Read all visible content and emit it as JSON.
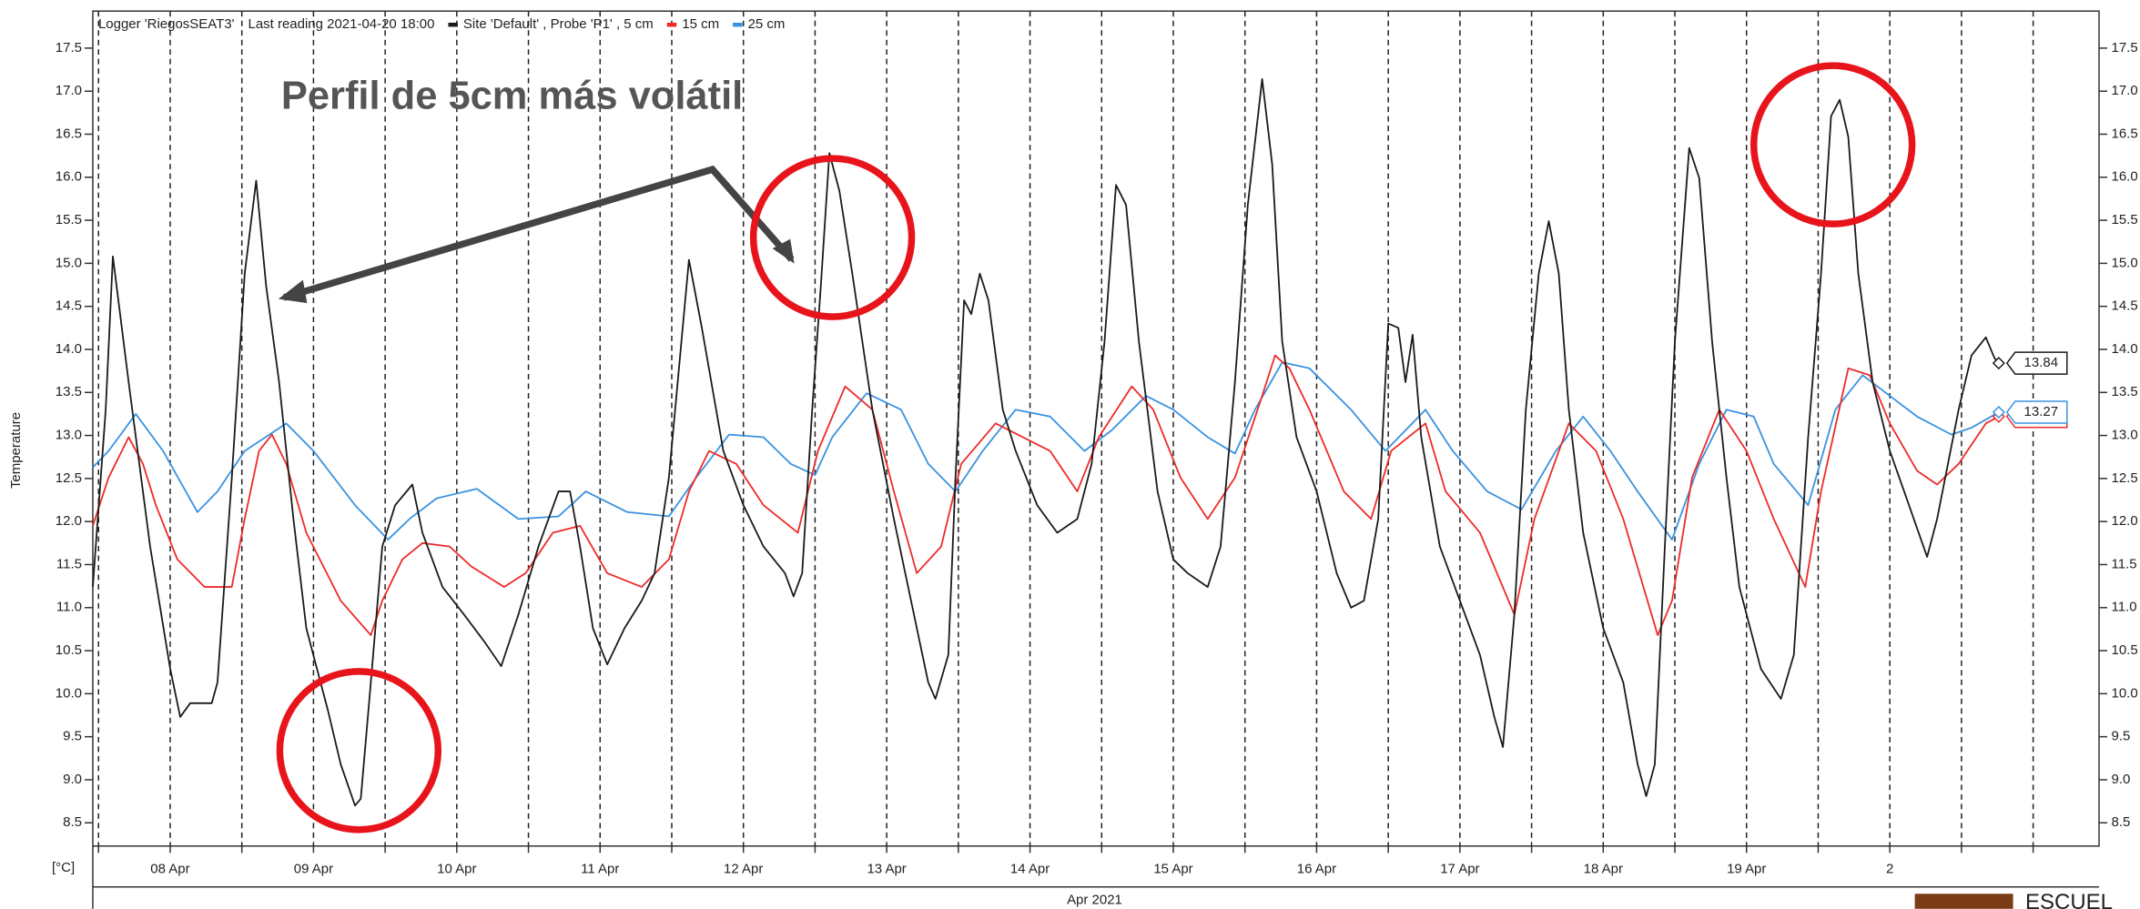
{
  "chart_data": {
    "type": "line",
    "title": "Logger 'RiegosSEAT3'",
    "subtitle": "Last reading 2021-04-20 18:00",
    "ylabel": "Temperature",
    "yunit": "[°C]",
    "xlabel": "Apr 2021",
    "annotation": "Perfil de 5cm más volátil",
    "logo": "ESCUEL",
    "xlim": [
      7.46,
      21.46
    ],
    "ylim": [
      8.23,
      17.93
    ],
    "grid": "x",
    "xticks": [
      {
        "value": 8,
        "label": "08 Apr"
      },
      {
        "value": 9,
        "label": "09 Apr"
      },
      {
        "value": 10,
        "label": "10 Apr"
      },
      {
        "value": 11,
        "label": "11 Apr"
      },
      {
        "value": 12,
        "label": "12 Apr"
      },
      {
        "value": 13,
        "label": "13 Apr"
      },
      {
        "value": 14,
        "label": "14 Apr"
      },
      {
        "value": 15,
        "label": "15 Apr"
      },
      {
        "value": 16,
        "label": "16 Apr"
      },
      {
        "value": 17,
        "label": "17 Apr"
      },
      {
        "value": 18,
        "label": "18 Apr"
      },
      {
        "value": 19,
        "label": "19 Apr"
      },
      {
        "value": 20,
        "label": "2"
      }
    ],
    "xminor": [
      7.5,
      8.5,
      9.5,
      10.5,
      11.5,
      12.5,
      13.5,
      14.5,
      15.5,
      16.5,
      17.5,
      18.5,
      19.5,
      20.5,
      21
    ],
    "yticks": [
      8.5,
      {
        "value": 9,
        "label": "9.0"
      },
      9.5,
      {
        "value": 10,
        "label": "10.0"
      },
      10.5,
      {
        "value": 11,
        "label": "11.0"
      },
      11.5,
      {
        "value": 12,
        "label": "12.0"
      },
      12.5,
      {
        "value": 13,
        "label": "13.0"
      },
      13.5,
      {
        "value": 14,
        "label": "14.0"
      },
      14.5,
      {
        "value": 15,
        "label": "15.0"
      },
      15.5,
      {
        "value": 16,
        "label": "16.0"
      },
      16.5,
      {
        "value": 17,
        "label": "17.0"
      },
      17.5
    ],
    "series": [
      {
        "name": "Site 'Default' , Probe 'P1' , 5 cm",
        "color": "#1a1a1a",
        "end_value": 13.84,
        "x": [
          7.46,
          7.55,
          7.6,
          7.71,
          7.86,
          8.0,
          8.07,
          8.14,
          8.29,
          8.33,
          8.43,
          8.52,
          8.6,
          8.67,
          8.76,
          8.86,
          8.95,
          9.1,
          9.19,
          9.29,
          9.33,
          9.4,
          9.48,
          9.57,
          9.69,
          9.76,
          9.9,
          10.05,
          10.19,
          10.31,
          10.43,
          10.57,
          10.71,
          10.79,
          10.86,
          10.95,
          11.05,
          11.17,
          11.29,
          11.38,
          11.48,
          11.62,
          11.71,
          11.86,
          12.0,
          12.14,
          12.29,
          12.35,
          12.41,
          12.48,
          12.54,
          12.6,
          12.67,
          12.76,
          12.9,
          13.05,
          13.19,
          13.29,
          13.34,
          13.43,
          13.48,
          13.54,
          13.59,
          13.65,
          13.71,
          13.81,
          13.9,
          14.05,
          14.19,
          14.33,
          14.43,
          14.52,
          14.6,
          14.67,
          14.76,
          14.89,
          15.0,
          15.1,
          15.24,
          15.33,
          15.43,
          15.52,
          15.62,
          15.69,
          15.76,
          15.86,
          16.0,
          16.14,
          16.24,
          16.33,
          16.43,
          16.5,
          16.57,
          16.62,
          16.67,
          16.73,
          16.86,
          17.0,
          17.14,
          17.24,
          17.3,
          17.38,
          17.46,
          17.55,
          17.62,
          17.69,
          17.76,
          17.86,
          18.0,
          18.14,
          18.24,
          18.3,
          18.36,
          18.43,
          18.5,
          18.6,
          18.67,
          18.76,
          18.86,
          18.95,
          19.1,
          19.24,
          19.33,
          19.43,
          19.52,
          19.59,
          19.65,
          19.71,
          19.78,
          19.88,
          20.0,
          20.1,
          20.26,
          20.33,
          20.48,
          20.57,
          20.67,
          20.73,
          20.76
        ],
        "values": [
          11.24,
          13.3,
          15.08,
          13.62,
          11.71,
          10.29,
          9.73,
          9.89,
          9.89,
          10.13,
          12.51,
          14.88,
          15.96,
          14.73,
          13.62,
          12.03,
          10.76,
          9.81,
          9.18,
          8.7,
          8.78,
          10.13,
          11.71,
          12.19,
          12.43,
          11.87,
          11.24,
          10.92,
          10.61,
          10.32,
          10.92,
          11.71,
          12.35,
          12.35,
          11.71,
          10.76,
          10.34,
          10.76,
          11.08,
          11.4,
          12.51,
          15.04,
          14.25,
          12.82,
          12.19,
          11.71,
          11.4,
          11.13,
          11.4,
          13.3,
          14.73,
          16.28,
          15.84,
          14.88,
          13.3,
          12.03,
          10.92,
          10.13,
          9.94,
          10.45,
          12.51,
          14.57,
          14.41,
          14.88,
          14.57,
          13.3,
          12.82,
          12.19,
          11.87,
          12.03,
          12.67,
          14.09,
          15.91,
          15.68,
          14.09,
          12.35,
          11.56,
          11.4,
          11.24,
          11.71,
          13.62,
          15.68,
          17.14,
          16.15,
          14.09,
          12.98,
          12.35,
          11.4,
          11.0,
          11.08,
          12.03,
          14.3,
          14.25,
          13.62,
          14.17,
          12.98,
          11.71,
          11.08,
          10.45,
          9.73,
          9.38,
          10.92,
          13.3,
          14.88,
          15.49,
          14.88,
          13.3,
          11.87,
          10.76,
          10.13,
          9.18,
          8.81,
          9.18,
          11.71,
          14.09,
          16.34,
          15.99,
          14.09,
          12.51,
          11.24,
          10.29,
          9.94,
          10.45,
          12.98,
          14.88,
          16.71,
          16.9,
          16.47,
          14.88,
          13.62,
          12.82,
          12.35,
          11.59,
          12.03,
          13.3,
          13.93,
          14.14,
          13.9,
          13.84
        ]
      },
      {
        "name": "15 cm",
        "color": "#ee2a2a",
        "x": [
          7.46,
          7.57,
          7.71,
          7.81,
          7.9,
          8.05,
          8.24,
          8.43,
          8.52,
          8.62,
          8.71,
          8.81,
          8.95,
          9.19,
          9.4,
          9.48,
          9.62,
          9.76,
          9.95,
          10.1,
          10.33,
          10.48,
          10.67,
          10.86,
          11.05,
          11.29,
          11.48,
          11.62,
          11.76,
          11.95,
          12.14,
          12.38,
          12.52,
          12.71,
          12.9,
          13.05,
          13.21,
          13.38,
          13.52,
          13.76,
          13.95,
          14.14,
          14.33,
          14.48,
          14.71,
          14.86,
          15.05,
          15.24,
          15.43,
          15.62,
          15.71,
          15.81,
          15.95,
          16.19,
          16.38,
          16.52,
          16.76,
          16.9,
          17.14,
          17.38,
          17.52,
          17.76,
          17.95,
          18.14,
          18.38,
          18.48,
          18.62,
          18.81,
          19.0,
          19.19,
          19.41,
          19.52,
          19.71,
          19.86,
          20.0,
          20.19,
          20.33,
          20.48,
          20.67,
          20.76
        ],
        "values": [
          11.95,
          12.51,
          12.98,
          12.67,
          12.19,
          11.56,
          11.24,
          11.24,
          12.03,
          12.82,
          13.01,
          12.67,
          11.87,
          11.08,
          10.68,
          11.08,
          11.56,
          11.75,
          11.71,
          11.48,
          11.24,
          11.4,
          11.87,
          11.95,
          11.4,
          11.24,
          11.56,
          12.35,
          12.82,
          12.67,
          12.19,
          11.87,
          12.82,
          13.57,
          13.3,
          12.35,
          11.4,
          11.71,
          12.67,
          13.14,
          12.98,
          12.82,
          12.35,
          12.98,
          13.57,
          13.3,
          12.51,
          12.03,
          12.51,
          13.46,
          13.93,
          13.78,
          13.3,
          12.35,
          12.03,
          12.82,
          13.14,
          12.35,
          11.87,
          10.92,
          12.03,
          13.14,
          12.82,
          12.03,
          10.68,
          11.08,
          12.51,
          13.3,
          12.82,
          12.03,
          11.24,
          12.35,
          13.78,
          13.7,
          13.14,
          12.59,
          12.43,
          12.67,
          13.14,
          13.22
        ]
      },
      {
        "name": "25 cm",
        "color": "#3a92e0",
        "end_value": 13.27,
        "x": [
          7.46,
          7.57,
          7.76,
          7.95,
          8.19,
          8.33,
          8.52,
          8.81,
          9.0,
          9.29,
          9.52,
          9.67,
          9.86,
          10.14,
          10.43,
          10.71,
          10.9,
          11.19,
          11.48,
          11.67,
          11.9,
          12.14,
          12.33,
          12.5,
          12.62,
          12.86,
          13.1,
          13.29,
          13.48,
          13.67,
          13.9,
          14.14,
          14.38,
          14.57,
          14.81,
          15.0,
          15.24,
          15.43,
          15.57,
          15.76,
          15.95,
          16.24,
          16.48,
          16.76,
          16.95,
          17.19,
          17.43,
          17.67,
          17.86,
          18.05,
          18.24,
          18.48,
          18.67,
          18.86,
          19.05,
          19.19,
          19.43,
          19.62,
          19.81,
          20.0,
          20.19,
          20.43,
          20.57,
          20.76
        ],
        "values": [
          12.63,
          12.82,
          13.25,
          12.82,
          12.11,
          12.35,
          12.82,
          13.14,
          12.82,
          12.19,
          11.79,
          12.03,
          12.27,
          12.38,
          12.03,
          12.06,
          12.35,
          12.11,
          12.06,
          12.51,
          13.01,
          12.98,
          12.67,
          12.54,
          12.98,
          13.49,
          13.3,
          12.67,
          12.35,
          12.82,
          13.3,
          13.22,
          12.82,
          13.06,
          13.46,
          13.3,
          12.98,
          12.79,
          13.3,
          13.85,
          13.78,
          13.3,
          12.82,
          13.3,
          12.82,
          12.35,
          12.14,
          12.82,
          13.22,
          12.82,
          12.35,
          11.79,
          12.67,
          13.3,
          13.22,
          12.67,
          12.19,
          13.3,
          13.7,
          13.46,
          13.22,
          13.01,
          13.09,
          13.27
        ]
      }
    ]
  }
}
